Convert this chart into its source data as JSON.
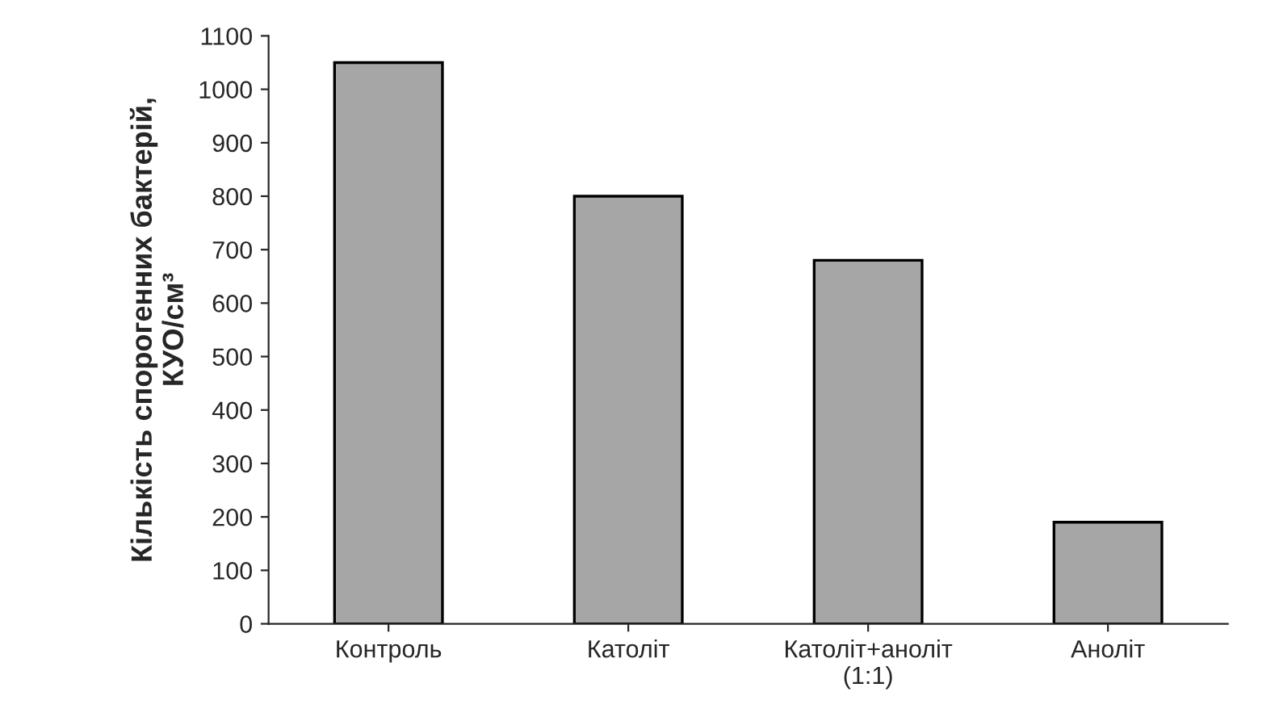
{
  "chart_data": {
    "type": "bar",
    "ylabel": "Кількість спорогенних бактерій,\nКУО/см³",
    "categories": [
      "Контроль",
      "Католіт",
      "Католіт+аноліт\n(1:1)",
      "Аноліт"
    ],
    "values": [
      1050,
      800,
      680,
      190
    ],
    "color": "#a6a6a6",
    "ylim": [
      0,
      1100
    ],
    "yticks": [
      0,
      100,
      200,
      300,
      400,
      500,
      600,
      700,
      800,
      900,
      1000,
      1100
    ],
    "grid": false,
    "legend": false
  }
}
